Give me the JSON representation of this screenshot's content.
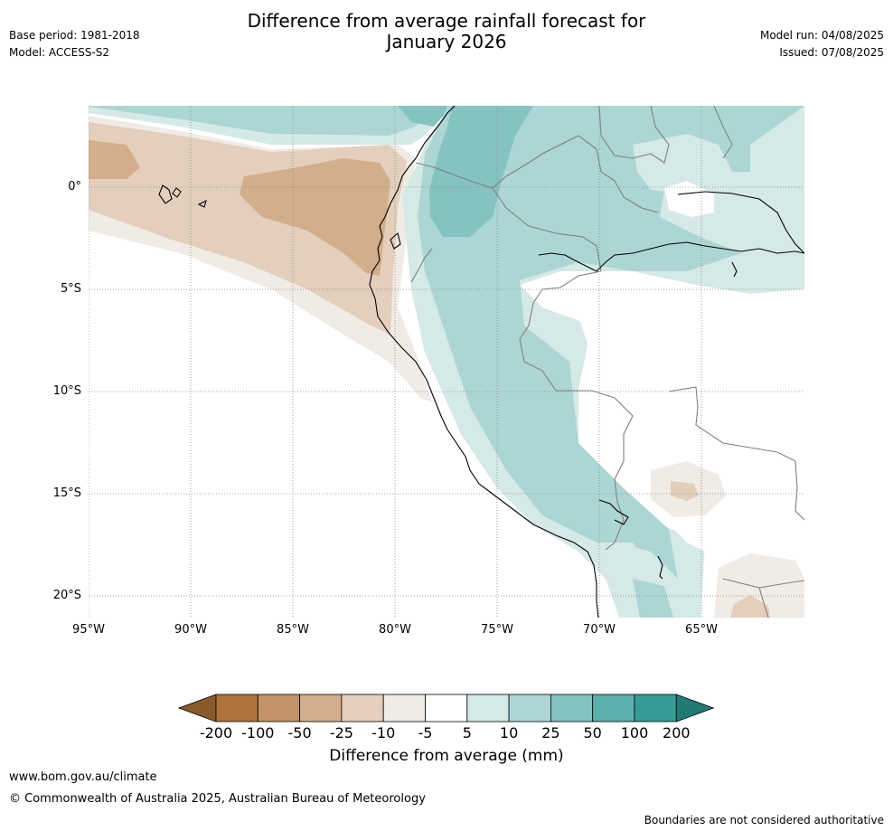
{
  "header": {
    "base_period": "Base period: 1981-2018",
    "model": "Model: ACCESS-S2",
    "title_line1": "Difference from average rainfall forecast for",
    "title_line2": "January 2026",
    "model_run": "Model run: 04/08/2025",
    "issued": "Issued: 07/08/2025"
  },
  "map": {
    "lon_ticks": [
      "95°W",
      "90°W",
      "85°W",
      "80°W",
      "75°W",
      "70°W",
      "65°W"
    ],
    "lat_ticks": [
      "0°",
      "5°S",
      "10°S",
      "15°S",
      "20°S"
    ],
    "colors": {
      "brown_50": "#d2ae8a",
      "brown_25": "#e3cfbc",
      "brown_10": "#f0ebe5",
      "teal_10": "#d5e9e7",
      "teal_25": "#acd6d4",
      "teal_50": "#84c3c0",
      "coast": "#000000",
      "border": "#808080",
      "grid": "#888888"
    }
  },
  "colorbar": {
    "labels": [
      "-200",
      "-100",
      "-50",
      "-25",
      "-10",
      "-5",
      "5",
      "10",
      "25",
      "50",
      "100",
      "200"
    ],
    "colors": [
      "#8b5a2b",
      "#ad733a",
      "#c19366",
      "#d2ae8a",
      "#e3cfbc",
      "#f0ebe5",
      "#ffffff",
      "#d5e9e7",
      "#acd6d4",
      "#84c3c0",
      "#5cb0ac",
      "#359c98",
      "#217a76"
    ],
    "title": "Difference from average (mm)"
  },
  "footer": {
    "website": "www.bom.gov.au/climate",
    "copyright": "© Commonwealth of Australia 2025, Australian Bureau of Meteorology",
    "disclaimer": "Boundaries are not considered authoritative"
  }
}
